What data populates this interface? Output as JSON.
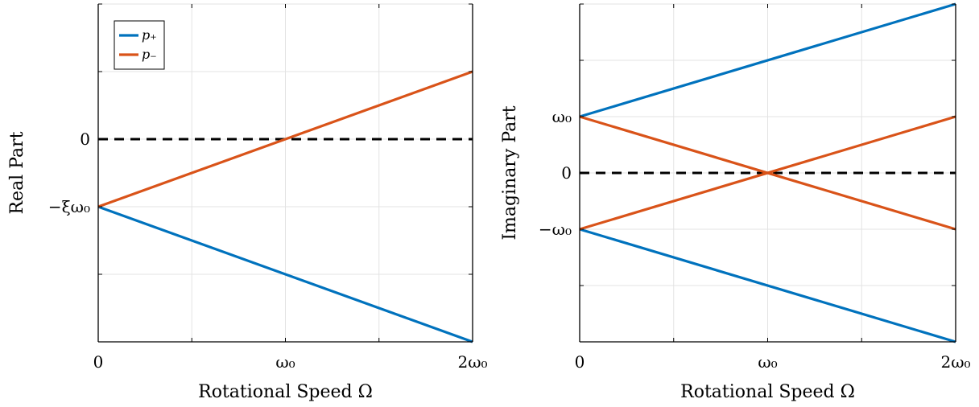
{
  "chart_data": [
    {
      "type": "line",
      "title": "",
      "xlabel": "Rotational Speed Ω",
      "ylabel": "Real Part",
      "xlim": [
        0,
        2
      ],
      "ylim": [
        -2,
        3
      ],
      "x_ticks": [
        {
          "value": 0,
          "label": "0"
        },
        {
          "value": 0.5,
          "label": ""
        },
        {
          "value": 1,
          "label": "ω₀"
        },
        {
          "value": 1.5,
          "label": ""
        },
        {
          "value": 2,
          "label": "2ω₀"
        }
      ],
      "y_ticks": [
        {
          "value": -2,
          "label": ""
        },
        {
          "value": -1,
          "label": ""
        },
        {
          "value": 0,
          "label": "−ξω₀"
        },
        {
          "value": 1,
          "label": "0"
        },
        {
          "value": 2,
          "label": ""
        },
        {
          "value": 3,
          "label": ""
        }
      ],
      "grid": true,
      "legend": "top-left",
      "reference_line": {
        "y": 1,
        "style": "dashed",
        "color": "#000000"
      },
      "series": [
        {
          "name": "p₊",
          "color": "#0072BD",
          "x": [
            0,
            2
          ],
          "y": [
            0,
            -2
          ]
        },
        {
          "name": "p₋",
          "color": "#D95319",
          "x": [
            0,
            2
          ],
          "y": [
            0,
            2
          ]
        }
      ]
    },
    {
      "type": "line",
      "title": "",
      "xlabel": "Rotational Speed Ω",
      "ylabel": "Imaginary Part",
      "xlim": [
        0,
        2
      ],
      "ylim": [
        -3,
        3
      ],
      "x_ticks": [
        {
          "value": 0,
          "label": "0"
        },
        {
          "value": 0.5,
          "label": ""
        },
        {
          "value": 1,
          "label": "ω₀"
        },
        {
          "value": 1.5,
          "label": ""
        },
        {
          "value": 2,
          "label": "2ω₀"
        }
      ],
      "y_ticks": [
        {
          "value": -3,
          "label": ""
        },
        {
          "value": -2,
          "label": ""
        },
        {
          "value": -1,
          "label": "−ω₀"
        },
        {
          "value": 0,
          "label": "0"
        },
        {
          "value": 1,
          "label": "ω₀"
        },
        {
          "value": 2,
          "label": ""
        },
        {
          "value": 3,
          "label": ""
        }
      ],
      "grid": true,
      "legend": "",
      "reference_line": {
        "y": 0,
        "style": "dashed",
        "color": "#000000"
      },
      "series": [
        {
          "color": "#0072BD",
          "x": [
            0,
            2
          ],
          "y": [
            1,
            3
          ]
        },
        {
          "color": "#0072BD",
          "x": [
            0,
            2
          ],
          "y": [
            -1,
            -3
          ]
        },
        {
          "color": "#D95319",
          "x": [
            0,
            2
          ],
          "y": [
            1,
            -1
          ]
        },
        {
          "color": "#D95319",
          "x": [
            0,
            2
          ],
          "y": [
            -1,
            1
          ]
        }
      ]
    }
  ]
}
